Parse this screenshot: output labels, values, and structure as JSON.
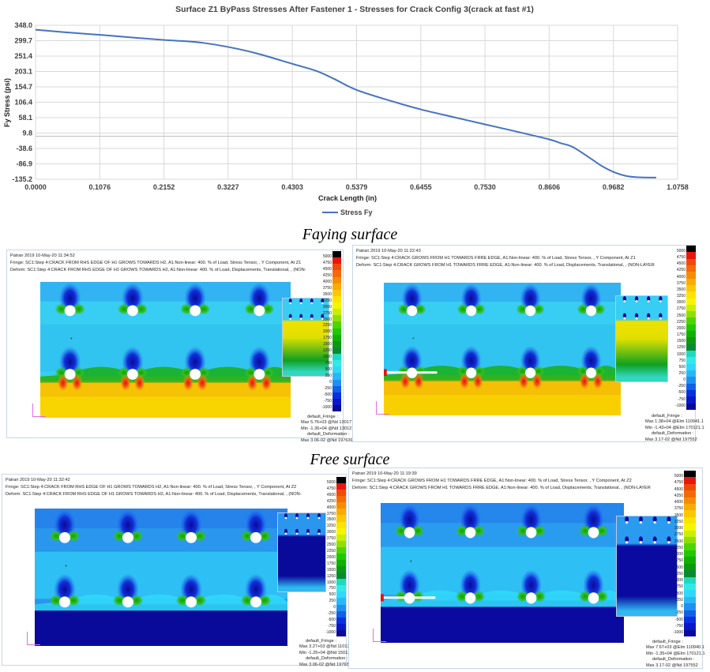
{
  "chart_data": {
    "type": "line",
    "title": "Surface Z1 ByPass Stresses After Fastener 1 - Stresses for Crack Config 3(crack at fast #1)",
    "xlabel": "Crack Length (in)",
    "ylabel": "Fy Stress (psi)",
    "xlim": [
      0,
      1.0758
    ],
    "ylim": [
      -135.2,
      348.0
    ],
    "xticks": [
      "0.0000",
      "0.1076",
      "0.2152",
      "0.3227",
      "0.4303",
      "0.5379",
      "0.6455",
      "0.7530",
      "0.8606",
      "0.9682",
      "1.0758"
    ],
    "yticks": [
      "348.0",
      "299.7",
      "251.4",
      "203.1",
      "154.7",
      "106.4",
      "58.1",
      "9.8",
      "-38.6",
      "-86.9",
      "-135.2"
    ],
    "grid": true,
    "legend_position": "bottom",
    "series": [
      {
        "name": "Stress Fy",
        "color": "#4472c4",
        "x": [
          0,
          0.05,
          0.1076,
          0.16,
          0.2152,
          0.25,
          0.28,
          0.3227,
          0.37,
          0.4303,
          0.47,
          0.5,
          0.5379,
          0.6,
          0.6455,
          0.7,
          0.753,
          0.8,
          0.8606,
          0.88,
          0.9,
          0.93,
          0.95,
          0.9682,
          0.99,
          1.01,
          1.04
        ],
        "y": [
          334,
          326,
          318,
          310,
          302,
          298,
          293,
          280,
          260,
          227,
          205,
          180,
          145,
          108,
          84,
          60,
          37,
          17,
          -10,
          -22,
          -34,
          -70,
          -95,
          -112,
          -125,
          -129,
          -130
        ]
      }
    ]
  },
  "captions": {
    "faying": "Faying surface",
    "free": "Free surface"
  },
  "colorbar": {
    "labels": [
      "5000",
      "4750",
      "4500",
      "4250",
      "4000",
      "3750",
      "3500",
      "3250",
      "3000",
      "2750",
      "2500",
      "2250",
      "2000",
      "1750",
      "1500",
      "1250",
      "1000",
      "750",
      "500",
      "250",
      "0",
      "-250",
      "-500",
      "-750",
      "-1000"
    ],
    "colors": [
      "#000000",
      "#e8170e",
      "#f04a0a",
      "#f46a08",
      "#f68c06",
      "#f8ac04",
      "#fbc802",
      "#fce300",
      "#f5f500",
      "#c8ee00",
      "#8ee000",
      "#4fd400",
      "#1fc800",
      "#10b000",
      "#0a9a10",
      "#0a8a30",
      "#20d8c0",
      "#30eae8",
      "#30d8f8",
      "#28b8f8",
      "#2090f0",
      "#1060e8",
      "#0a30e0",
      "#0818c8",
      "#0a0a9a"
    ]
  },
  "panels": [
    {
      "id": "faying-left",
      "header": [
        "Patran 2019 10-May-20 11:34:52",
        "Fringe: SC1:Step 4:CRACK FROM RHS EDGE OF H1 GROWS TOWARDS H2, A1:Non-linear: 400. % of Load, Stress Tensor, , Y Component, At Z1",
        "Deform: SC1:Step 4:CRACK FROM RHS EDGE OF H1 GROWS TOWARDS H2, A1:Non-linear: 400. % of Load, Displacements, Translational, , (NON-"
      ],
      "footer": [
        "default_Fringe :",
        "Max 5.76+03 @Nd 130177",
        "Min -1.36+04 @Nd 130121",
        "default_Deformation :",
        "Max 3.06-02 @Nd 197639"
      ],
      "colors": {
        "top": "#38cdf2",
        "bottom": "#f8d400",
        "band": "#18b020",
        "inset_bottom": "#10a020"
      }
    },
    {
      "id": "faying-right",
      "header": [
        "Patran 2019 10-May-20 11:22:43",
        "Fringe: SC1:Step 4:CRACK GROWS FROM H1 TOWARDS FRRE EDGE, A1:Non-linear: 400. % of Load, Stress Tensor, , Y Component, At Z1",
        "Deform: SC1:Step 4:CRACK GROWS FROM H1 TOWARDS FRRE EDGE, A1:Non-linear: 400. % of Load, Displacements, Translational, , (NON-LAYER"
      ],
      "footer": [
        "default_Fringe :",
        "Max 1.38+04 @Elm 110941.1",
        "Min -1.43+04 @Elm 170121.1",
        "default_Deformation :",
        "Max 3.17-02 @Nd 197552"
      ],
      "colors": {
        "top": "#38cdf2",
        "bottom": "#f8d000",
        "band": "#18b020",
        "inset_bottom": "#10a020"
      }
    },
    {
      "id": "free-left",
      "header": [
        "Patran 2019 10-May-20 11:32:42",
        "Fringe: SC1:Step 4:CRACK FROM RHS EDGE OF H1 GROWS TOWARDS H2, A1:Non-linear: 400. % of Load, Stress Tensor, , Y Component, At Z2",
        "Deform: SC1:Step 4:CRACK FROM RHS EDGE OF H1 GROWS TOWARDS H2, A1:Non-linear: 400. % of Load, Displacements, Translational, , (NON-"
      ],
      "footer": [
        "default_Fringe :",
        "Max 3.27+03 @Nd 110135",
        "Min -1.25+04 @Nd 150121",
        "default_Deformation :",
        "Max 3.06-02 @Nd 197639"
      ],
      "colors": {
        "top": "#2a96ee",
        "bottom": "#0a0a9a",
        "band": "#30d8f8",
        "inset_bottom": "#0a0a9a"
      }
    },
    {
      "id": "free-right",
      "header": [
        "Patran 2019 10-May-20 11:19:39",
        "Fringe: SC1:Step 4:CRACK GROWS FROM H1 TOWARDS FRRE EDGE, A1:Non-linear: 400. % of Load, Stress Tensor, , Y Component, At Z2",
        "Deform: SC1:Step 4:CRACK GROWS FROM H1 TOWARDS FRRE EDGE, A1:Non-linear: 400. % of Load, Displacements, Translational, , (NON-LAYER"
      ],
      "footer": [
        "default_Fringe :",
        "Max 7.67+03 @Elm 110940.1",
        "Min -1.35+04 @Elm 170121.1",
        "default_Deformation :",
        "Max 3.17-02 @Nd 197552"
      ],
      "colors": {
        "top": "#2a9cf0",
        "bottom": "#0a0aa0",
        "band": "#30d8f8",
        "inset_bottom": "#0a0aa0"
      }
    }
  ]
}
